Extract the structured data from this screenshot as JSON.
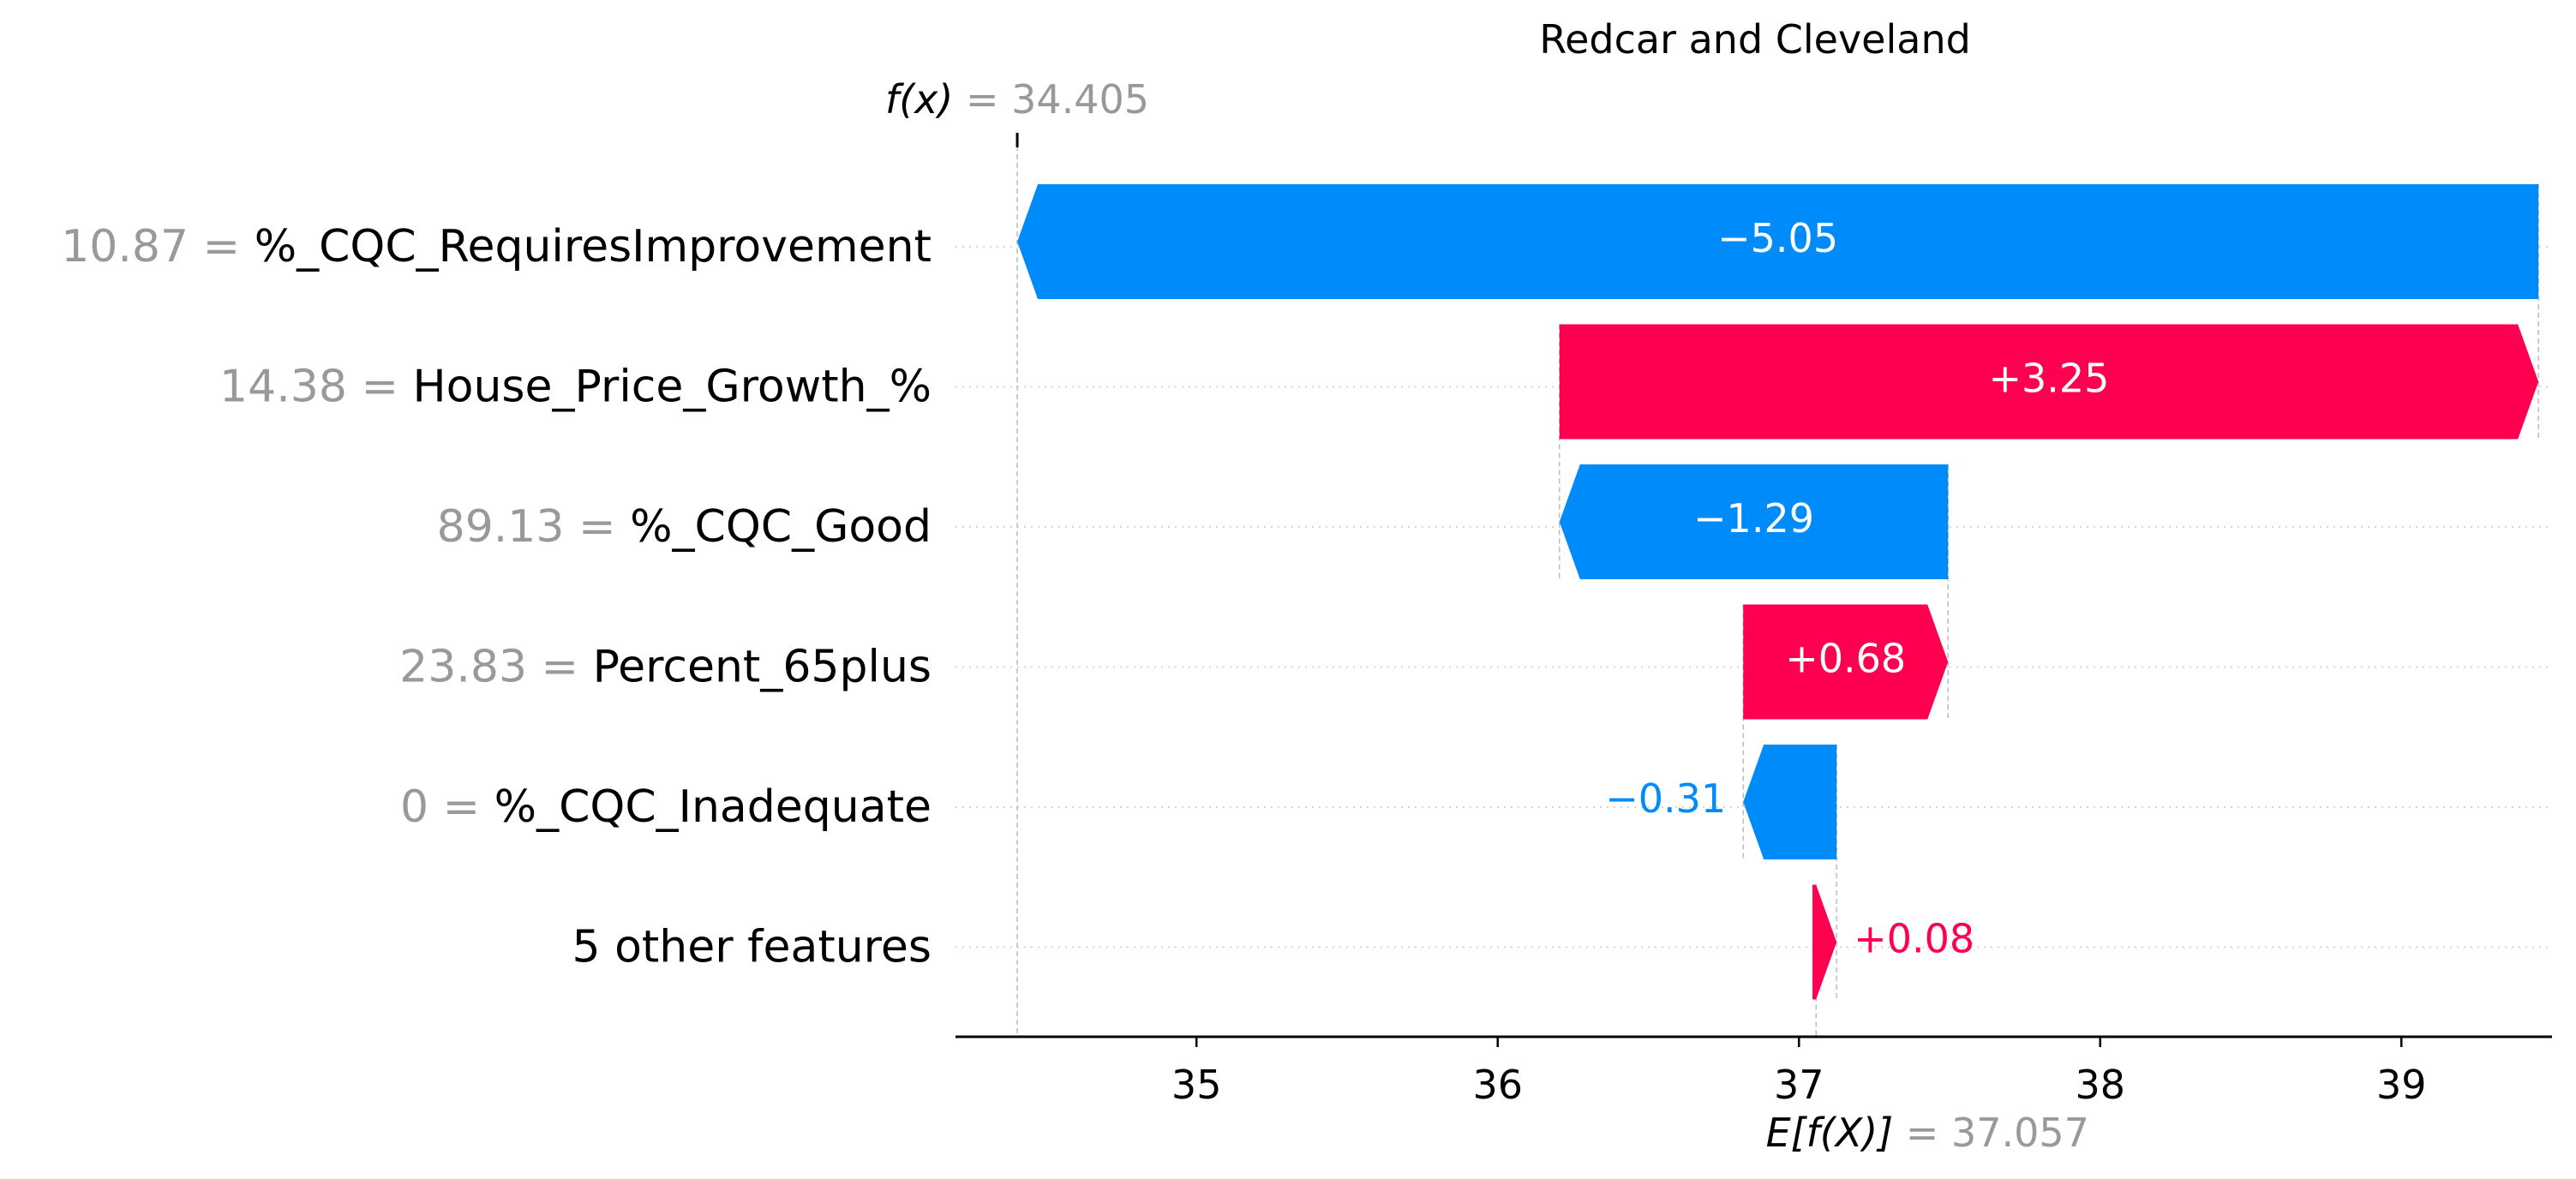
{
  "chart_data": {
    "type": "waterfall",
    "title": "Redcar and Cleveland",
    "fx_label": "f(x)",
    "fx_value": "34.405",
    "efx_label": "E[f(X)]",
    "efx_value": "37.057",
    "xlim": [
      34.2,
      39.5
    ],
    "ticks": [
      35,
      36,
      37,
      38,
      39
    ],
    "colors": {
      "positive": "#ff0051",
      "negative": "#008bfb",
      "value_gray": "#999999"
    },
    "features": [
      {
        "value": "10.87",
        "name": "%_CQC_RequiresImprovement",
        "start": 39.455,
        "end": 34.405,
        "label": "−5.05"
      },
      {
        "value": "14.38",
        "name": "House_Price_Growth_%",
        "start": 36.205,
        "end": 39.455,
        "label": "+3.25"
      },
      {
        "value": "89.13",
        "name": "%_CQC_Good",
        "start": 37.495,
        "end": 36.205,
        "label": "−1.29"
      },
      {
        "value": "23.83",
        "name": "Percent_65plus",
        "start": 36.815,
        "end": 37.495,
        "label": "+0.68"
      },
      {
        "value": "0",
        "name": "%_CQC_Inadequate",
        "start": 37.125,
        "end": 36.815,
        "label": "−0.31"
      },
      {
        "value": "",
        "name": "5 other features",
        "start": 37.045,
        "end": 37.125,
        "label": "+0.08"
      }
    ]
  }
}
